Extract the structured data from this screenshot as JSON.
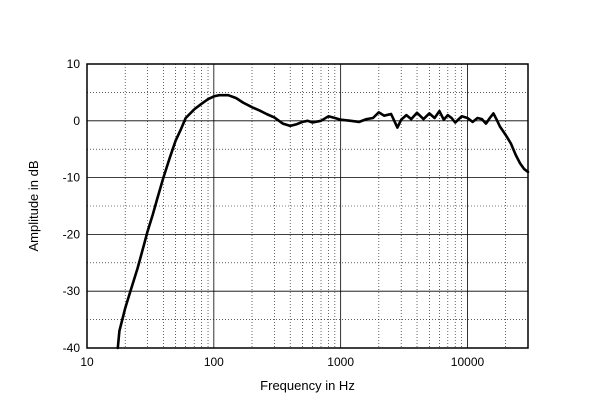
{
  "chart_data": {
    "type": "line",
    "title": "",
    "xlabel": "Frequency in Hz",
    "ylabel": "Amplitude in dB",
    "x_scale": "log",
    "xlim": [
      10,
      30000
    ],
    "ylim": [
      -40,
      10
    ],
    "grid": true,
    "legend": "none",
    "x_ticks": [
      10,
      100,
      1000,
      10000
    ],
    "x_tick_labels": [
      "10",
      "100",
      "1000",
      "10000"
    ],
    "y_ticks": [
      10,
      0,
      -10,
      -20,
      -30,
      -40
    ],
    "y_tick_labels": [
      "10",
      "0",
      "-10",
      "-20",
      "-30",
      "-40"
    ],
    "series": [
      {
        "color": "#000000",
        "x": [
          17.5,
          18,
          20,
          22,
          25,
          28,
          30,
          33,
          36,
          40,
          45,
          50,
          55,
          60,
          70,
          80,
          90,
          100,
          110,
          120,
          130,
          150,
          170,
          200,
          230,
          260,
          300,
          350,
          400,
          450,
          500,
          550,
          600,
          700,
          800,
          900,
          1000,
          1200,
          1400,
          1600,
          1800,
          2000,
          2200,
          2500,
          2800,
          3000,
          3300,
          3600,
          4000,
          4500,
          5000,
          5500,
          6000,
          6500,
          7000,
          7500,
          8000,
          9000,
          10000,
          11000,
          12000,
          13000,
          14000,
          15000,
          16000,
          17000,
          18000,
          20000,
          22000,
          24000,
          26000,
          28000,
          30000
        ],
        "y": [
          -40,
          -37,
          -33,
          -30,
          -26,
          -22,
          -19.5,
          -16.5,
          -13.5,
          -10,
          -6.5,
          -3.5,
          -1.5,
          0.5,
          2,
          3,
          3.8,
          4.3,
          4.5,
          4.5,
          4.5,
          4,
          3.2,
          2.4,
          1.8,
          1.2,
          0.6,
          -0.5,
          -0.9,
          -0.6,
          -0.2,
          0,
          -0.3,
          0,
          0.8,
          0.5,
          0.2,
          0,
          -0.2,
          0.3,
          0.5,
          1.5,
          0.9,
          1.2,
          -1.2,
          0.2,
          1,
          0.3,
          1.4,
          0.3,
          1.3,
          0.5,
          1.7,
          0.2,
          1,
          0.5,
          -0.3,
          0.8,
          0.5,
          -0.2,
          0.5,
          0.3,
          -0.5,
          0.5,
          1.3,
          0.2,
          -1,
          -2.5,
          -4,
          -6,
          -7.5,
          -8.5,
          -9
        ]
      }
    ]
  }
}
